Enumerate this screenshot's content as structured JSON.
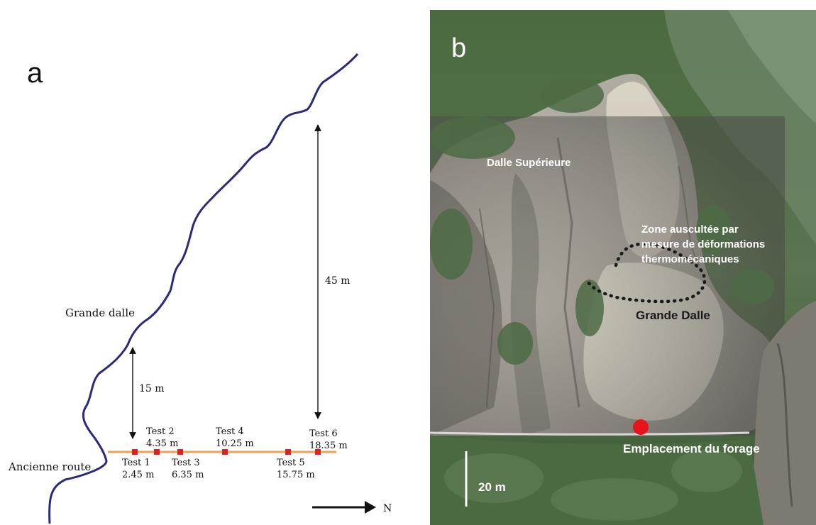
{
  "panel_a": {
    "label": "a",
    "cliff_label": "Grande dalle",
    "road_label": "Ancienne route",
    "north_label": "N",
    "dim_small": "15 m",
    "dim_large": "45 m",
    "tests": [
      {
        "name": "Test 1",
        "dist": "2.45 m"
      },
      {
        "name": "Test 2",
        "dist": "4.35 m"
      },
      {
        "name": "Test 3",
        "dist": "6.35 m"
      },
      {
        "name": "Test 4",
        "dist": "10.25 m"
      },
      {
        "name": "Test 5",
        "dist": "15.75 m"
      },
      {
        "name": "Test 6",
        "dist": "18.35 m"
      }
    ],
    "colors": {
      "cliff": "#2b2a7a",
      "road": "#f0a050",
      "marker": "#e02020",
      "ink": "#111111"
    }
  },
  "panel_b": {
    "label": "b",
    "upper_slab": "Dalle Supérieure",
    "zone_line1": "Zone auscultée par",
    "zone_line2": "mesure  de déformations",
    "zone_line3": "thermomécaniques",
    "grande_dalle": "Grande Dalle",
    "borehole": "Emplacement du forage",
    "scale": "20 m",
    "colors": {
      "borehole": "#e8141c",
      "text": "#ffffff",
      "dark_text": "#1a1a1a"
    }
  }
}
